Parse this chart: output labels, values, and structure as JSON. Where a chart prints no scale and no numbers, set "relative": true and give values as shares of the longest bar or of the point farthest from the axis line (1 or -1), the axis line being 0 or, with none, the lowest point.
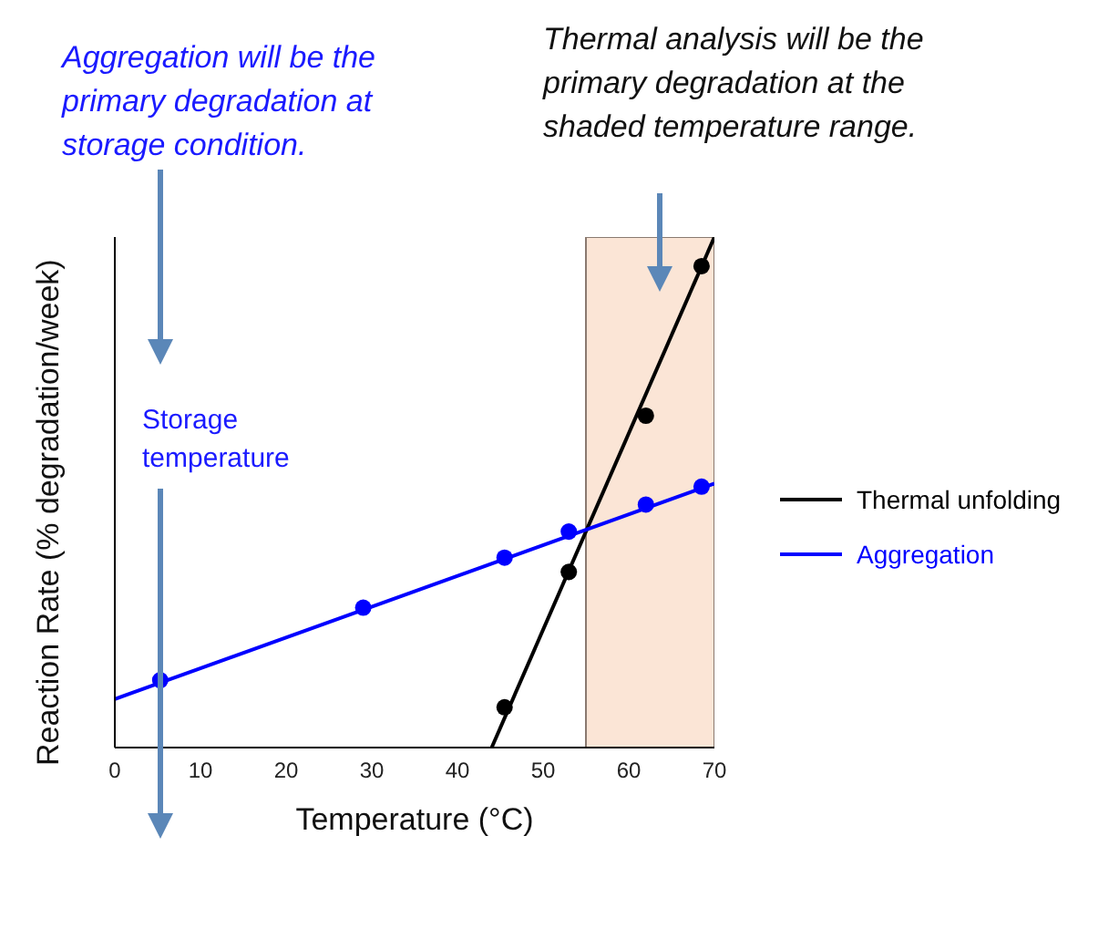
{
  "chart_data": {
    "type": "line",
    "xlabel": "Temperature (°C)",
    "ylabel": "Reaction Rate (% degradation/week)",
    "relative": true,
    "xlim": [
      0,
      70
    ],
    "xticks": [
      0,
      10,
      20,
      30,
      40,
      50,
      60,
      70
    ],
    "legend": "right",
    "marker": "none",
    "line_style": "solid",
    "series": [
      {
        "name": "Thermal unfolding",
        "color": "#000000",
        "x": [
          44,
          70
        ],
        "values": [
          0,
          1.0
        ]
      },
      {
        "name": "Aggregation",
        "color": "#0000ff",
        "x": [
          0,
          70
        ],
        "values": [
          0.095,
          0.517
        ]
      },
      {
        "type": "scatter",
        "color": "#000000",
        "marker": "circle",
        "x": [
          45.5,
          53,
          62,
          68.5
        ],
        "values": [
          0.079,
          0.344,
          0.65,
          0.943
        ]
      },
      {
        "type": "scatter",
        "color": "#0000ff",
        "marker": "circle",
        "x": [
          5.3,
          29,
          45.5,
          53,
          62,
          68.5
        ],
        "values": [
          0.132,
          0.274,
          0.372,
          0.423,
          0.476,
          0.511
        ]
      }
    ],
    "bands": [
      {
        "axis": "x",
        "from": 55,
        "to": 70,
        "color": "#fbe5d6"
      }
    ],
    "annotations": [
      "Aggregation will be the primary degradation at storage condition.",
      "Thermal analysis will be the primary degradation at the shaded temperature range.",
      "Storage temperature"
    ]
  }
}
